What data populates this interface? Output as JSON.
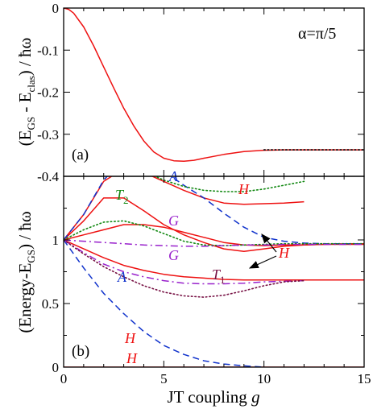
{
  "chart_data": [
    {
      "type": "line",
      "panel_label": "(a)",
      "annotation": "α=π/5",
      "ylabel": {
        "base": "(E",
        "gs_sub": "GS",
        "mid": " - E",
        "clas_sub": "clas",
        "end": ") / ħω"
      },
      "xlim": [
        0,
        15
      ],
      "ylim": [
        -0.4,
        0
      ],
      "yticks": [
        "0",
        "-0.1",
        "-0.2",
        "-0.3",
        "-0.4"
      ],
      "series": [
        {
          "color": "#ee1111",
          "style": "solid",
          "x": [
            0,
            0.25,
            0.5,
            1,
            1.5,
            2,
            2.5,
            3,
            3.5,
            4,
            4.5,
            5,
            5.5,
            6,
            6.5,
            7,
            8,
            9,
            10,
            11,
            12,
            13,
            14,
            15
          ],
          "y": [
            0,
            -0.003,
            -0.012,
            -0.045,
            -0.09,
            -0.14,
            -0.19,
            -0.238,
            -0.28,
            -0.316,
            -0.342,
            -0.357,
            -0.363,
            -0.364,
            -0.362,
            -0.357,
            -0.348,
            -0.341,
            -0.338,
            -0.337,
            -0.337,
            -0.337,
            -0.337,
            -0.337
          ]
        },
        {
          "color": "#000000",
          "style": "dotted",
          "x": [
            10,
            15
          ],
          "y": [
            -0.337,
            -0.337
          ]
        }
      ]
    },
    {
      "type": "line",
      "panel_label": "(b)",
      "xlabel": {
        "base": "JT coupling ",
        "var": "g"
      },
      "ylabel": {
        "base": "(Energy-E",
        "gs_sub": "GS",
        "end": ") / ħω"
      },
      "xlim": [
        0,
        15
      ],
      "ylim": [
        0,
        1.5
      ],
      "xticks": [
        "0",
        "5",
        "10",
        "15"
      ],
      "yticks": [
        "0",
        "0.5",
        "1"
      ],
      "ytick_values": [
        0,
        0.5,
        1
      ],
      "ytick_top_label": "0.4",
      "labels": [
        {
          "text": "H",
          "sub": "",
          "color": "#ee1111"
        },
        {
          "text": "A",
          "sub": "",
          "color": "#1133cc"
        },
        {
          "text": "T",
          "sub": "2",
          "color": "#118811"
        },
        {
          "text": "G",
          "sub": "",
          "color": "#9922cc"
        },
        {
          "text": "H",
          "sub": "",
          "color": "#ee1111"
        },
        {
          "text": "G",
          "sub": "",
          "color": "#9922cc"
        },
        {
          "text": "T",
          "sub": "1",
          "color": "#771144"
        },
        {
          "text": "A",
          "sub": "",
          "color": "#1133cc"
        },
        {
          "text": "H",
          "sub": "",
          "color": "#ee1111"
        }
      ],
      "series": [
        {
          "label": "H",
          "color": "#ee1111",
          "style": "solid",
          "x": [
            0,
            15
          ],
          "y": [
            0,
            0
          ]
        },
        {
          "label": "H",
          "color": "#ee1111",
          "style": "solid",
          "x": [
            0,
            1,
            2,
            3,
            4,
            5,
            6,
            7,
            8,
            9,
            10,
            11,
            12
          ],
          "y": [
            1,
            1.2,
            1.46,
            1.56,
            1.53,
            1.46,
            1.39,
            1.33,
            1.29,
            1.28,
            1.285,
            1.29,
            1.3
          ]
        },
        {
          "label": "H",
          "color": "#ee1111",
          "style": "solid",
          "x": [
            0,
            1,
            2,
            3,
            4,
            5,
            6,
            7,
            8,
            9,
            10,
            11,
            12,
            13,
            14,
            15
          ],
          "y": [
            1,
            1.15,
            1.33,
            1.33,
            1.23,
            1.12,
            1.04,
            0.98,
            0.93,
            0.91,
            0.93,
            0.95,
            0.96,
            0.965,
            0.97,
            0.97
          ]
        },
        {
          "label": "H",
          "color": "#ee1111",
          "style": "solid",
          "x": [
            0,
            1,
            2,
            3,
            4,
            5,
            6,
            7,
            8,
            9,
            10,
            11,
            12,
            13,
            14,
            15
          ],
          "y": [
            1,
            1.04,
            1.08,
            1.12,
            1.12,
            1.1,
            1.06,
            1.02,
            0.98,
            0.96,
            0.955,
            0.96,
            0.96,
            0.965,
            0.965,
            0.965
          ]
        },
        {
          "label": "H",
          "color": "#ee1111",
          "style": "solid",
          "x": [
            0,
            1,
            2,
            3,
            4,
            5,
            6,
            7,
            8,
            9,
            10,
            11,
            12,
            13,
            14,
            15
          ],
          "y": [
            1,
            0.93,
            0.86,
            0.8,
            0.76,
            0.73,
            0.71,
            0.7,
            0.69,
            0.685,
            0.685,
            0.685,
            0.685,
            0.685,
            0.685,
            0.685
          ]
        },
        {
          "label": "A",
          "color": "#1133cc",
          "style": "dashed",
          "x": [
            0,
            1,
            2,
            3,
            4,
            5,
            6,
            7,
            8,
            9,
            10,
            11,
            12,
            13,
            14,
            15
          ],
          "y": [
            1,
            1.2,
            1.47,
            1.64,
            1.63,
            1.54,
            1.43,
            1.33,
            1.21,
            1.1,
            1.02,
            0.99,
            0.975,
            0.97,
            0.97,
            0.97
          ]
        },
        {
          "label": "A",
          "color": "#1133cc",
          "style": "dashed",
          "x": [
            0,
            1,
            2,
            3,
            4,
            5,
            6,
            7,
            8,
            9,
            10
          ],
          "y": [
            1,
            0.78,
            0.58,
            0.42,
            0.28,
            0.17,
            0.1,
            0.05,
            0.025,
            0.01,
            0
          ]
        },
        {
          "label": "T2",
          "color": "#118811",
          "style": "dotted",
          "x": [
            0,
            1,
            2,
            3,
            4,
            5,
            6,
            7,
            8,
            9,
            10,
            11,
            12,
            13,
            14,
            15
          ],
          "y": [
            1,
            1.08,
            1.14,
            1.15,
            1.11,
            1.05,
            0.99,
            0.96,
            0.955,
            0.96,
            0.965,
            0.97,
            0.97,
            0.97,
            0.97,
            0.97
          ]
        },
        {
          "label": "T2",
          "color": "#118811",
          "style": "dotted",
          "x": [
            3,
            4,
            5,
            6,
            7,
            8,
            9,
            10,
            11,
            12
          ],
          "y": [
            1.6,
            1.54,
            1.47,
            1.42,
            1.39,
            1.38,
            1.38,
            1.4,
            1.43,
            1.46
          ]
        },
        {
          "label": "G",
          "color": "#9922cc",
          "style": "dashdot",
          "x": [
            0,
            1,
            2,
            3,
            4,
            5,
            6,
            7,
            8,
            9,
            10,
            11,
            12,
            13,
            14,
            15
          ],
          "y": [
            1,
            0.99,
            0.98,
            0.97,
            0.96,
            0.955,
            0.95,
            0.95,
            0.955,
            0.96,
            0.96,
            0.965,
            0.965,
            0.965,
            0.965,
            0.965
          ]
        },
        {
          "label": "G",
          "color": "#9922cc",
          "style": "dashdot",
          "x": [
            0,
            1,
            2,
            3,
            4,
            5,
            6,
            7,
            8,
            9,
            10,
            11,
            12
          ],
          "y": [
            1,
            0.9,
            0.81,
            0.75,
            0.71,
            0.68,
            0.66,
            0.655,
            0.655,
            0.66,
            0.67,
            0.675,
            0.68
          ]
        },
        {
          "label": "T1",
          "color": "#771144",
          "style": "dotted",
          "x": [
            0,
            1,
            2,
            3,
            4,
            5,
            6,
            7,
            8,
            9,
            10,
            11,
            12
          ],
          "y": [
            1,
            0.89,
            0.79,
            0.71,
            0.64,
            0.59,
            0.56,
            0.55,
            0.565,
            0.6,
            0.64,
            0.67,
            0.68
          ]
        }
      ],
      "arrow_label": {
        "text": "H",
        "color": "#ee1111"
      }
    }
  ]
}
